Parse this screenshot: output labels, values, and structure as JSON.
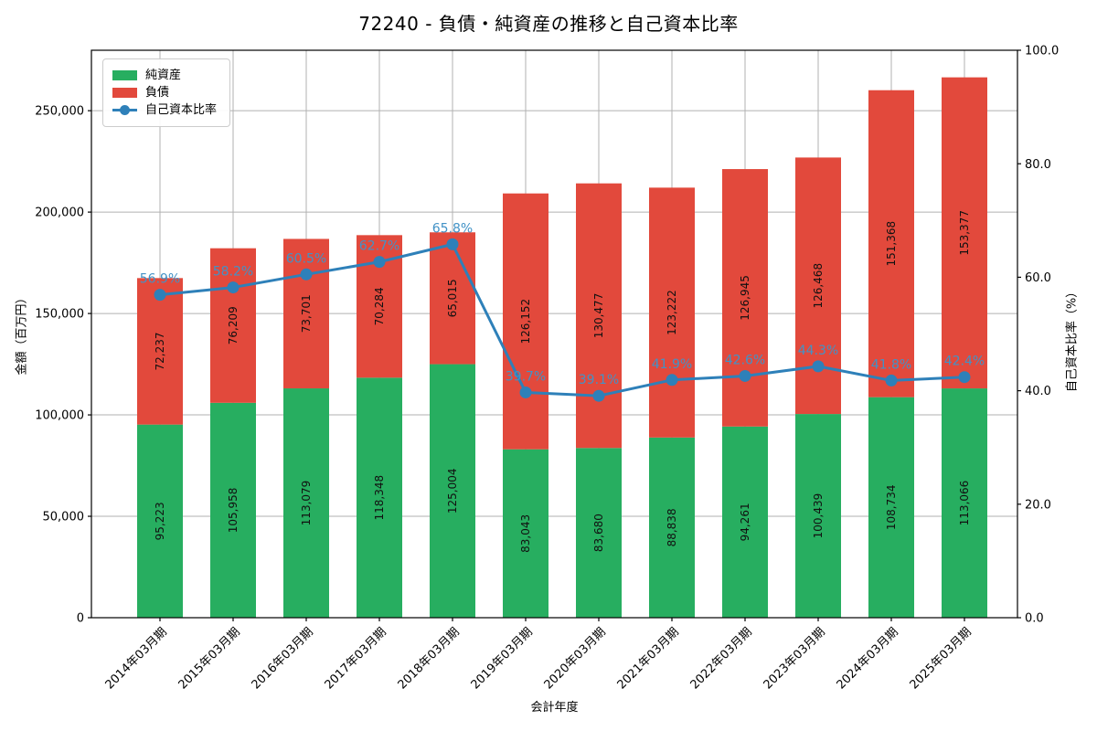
{
  "title": "72240 - 負債・純資産の推移と自己資本比率",
  "axes": {
    "x_label": "会計年度",
    "left_label": "金額（百万円）",
    "right_label": "自己資本比率（%）"
  },
  "legend": {
    "position": "upper left",
    "items": [
      {
        "label": "純資産",
        "swatch": "patch",
        "color": "#27ae60"
      },
      {
        "label": "負債",
        "swatch": "patch",
        "color": "#e2493c"
      },
      {
        "label": "自己資本比率",
        "swatch": "line-marker",
        "color": "#2e80b9"
      }
    ]
  },
  "chart_data": {
    "type": "bar",
    "stacked": true,
    "title": "72240 - 負債・純資産の推移と自己資本比率",
    "xlabel": "会計年度",
    "ylabel_left": "金額（百万円）",
    "ylabel_right": "自己資本比率（%）",
    "categories": [
      "2014年03月期",
      "2015年03月期",
      "2016年03月期",
      "2017年03月期",
      "2018年03月期",
      "2019年03月期",
      "2020年03月期",
      "2021年03月期",
      "2022年03月期",
      "2023年03月期",
      "2024年03月期",
      "2025年03月期"
    ],
    "series": [
      {
        "name": "純資産",
        "type": "bar",
        "axis": "left",
        "color": "#27ae60",
        "values": [
          95223,
          105958,
          113079,
          118348,
          125004,
          83043,
          83680,
          88838,
          94261,
          100439,
          108734,
          113066
        ]
      },
      {
        "name": "負債",
        "type": "bar",
        "axis": "left",
        "color": "#e2493c",
        "values": [
          72237,
          76209,
          73701,
          70284,
          65015,
          126152,
          130477,
          123222,
          126945,
          126468,
          151368,
          153377
        ]
      },
      {
        "name": "自己資本比率",
        "type": "line",
        "axis": "right",
        "color": "#2e80b9",
        "marker": "circle",
        "values": [
          56.9,
          58.2,
          60.5,
          62.7,
          65.8,
          39.7,
          39.1,
          41.9,
          42.6,
          44.3,
          41.8,
          42.4
        ]
      }
    ],
    "ylim_left": [
      0,
      279800
    ],
    "ylim_right": [
      0,
      100
    ],
    "yticks_left": {
      "values": [
        0,
        50000,
        100000,
        150000,
        200000,
        250000
      ],
      "labels": [
        "0",
        "50,000",
        "100,000",
        "150,000",
        "200,000",
        "250,000"
      ]
    },
    "yticks_right": {
      "values": [
        0,
        20,
        40,
        60,
        80,
        100
      ],
      "labels": [
        "0.0",
        "20.0",
        "40.0",
        "60.0",
        "80.0",
        "100.0"
      ]
    },
    "grid": true,
    "colors": {
      "grid": "#b0b0b0",
      "spine": "#000000",
      "bar_label": "#111111",
      "pct_label": "#4292c6",
      "tick_label": "#000000",
      "background": "#ffffff"
    }
  }
}
